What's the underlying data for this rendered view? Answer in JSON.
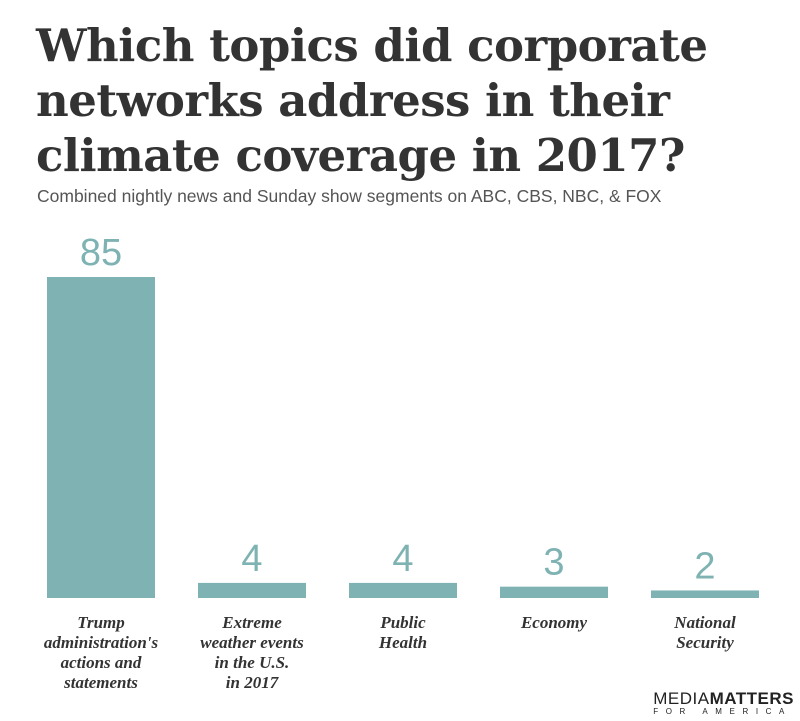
{
  "chart_data": {
    "type": "bar",
    "title": "Which topics did corporate networks address in their climate coverage in 2017?",
    "subtitle": "Combined nightly news and Sunday show segments on ABC, CBS, NBC, & FOX",
    "categories": [
      "Trump\nadministration's\nactions and\nstatements",
      "Extreme\nweather events\nin the U.S.\nin 2017",
      "Public\nHealth",
      "Economy",
      "National\nSecurity"
    ],
    "values": [
      85,
      4,
      4,
      3,
      2
    ],
    "color": "#7fb3b3"
  },
  "logo": {
    "media": "MEDIA",
    "matters": "MATTERS",
    "tagline": "FOR AMERICA"
  }
}
